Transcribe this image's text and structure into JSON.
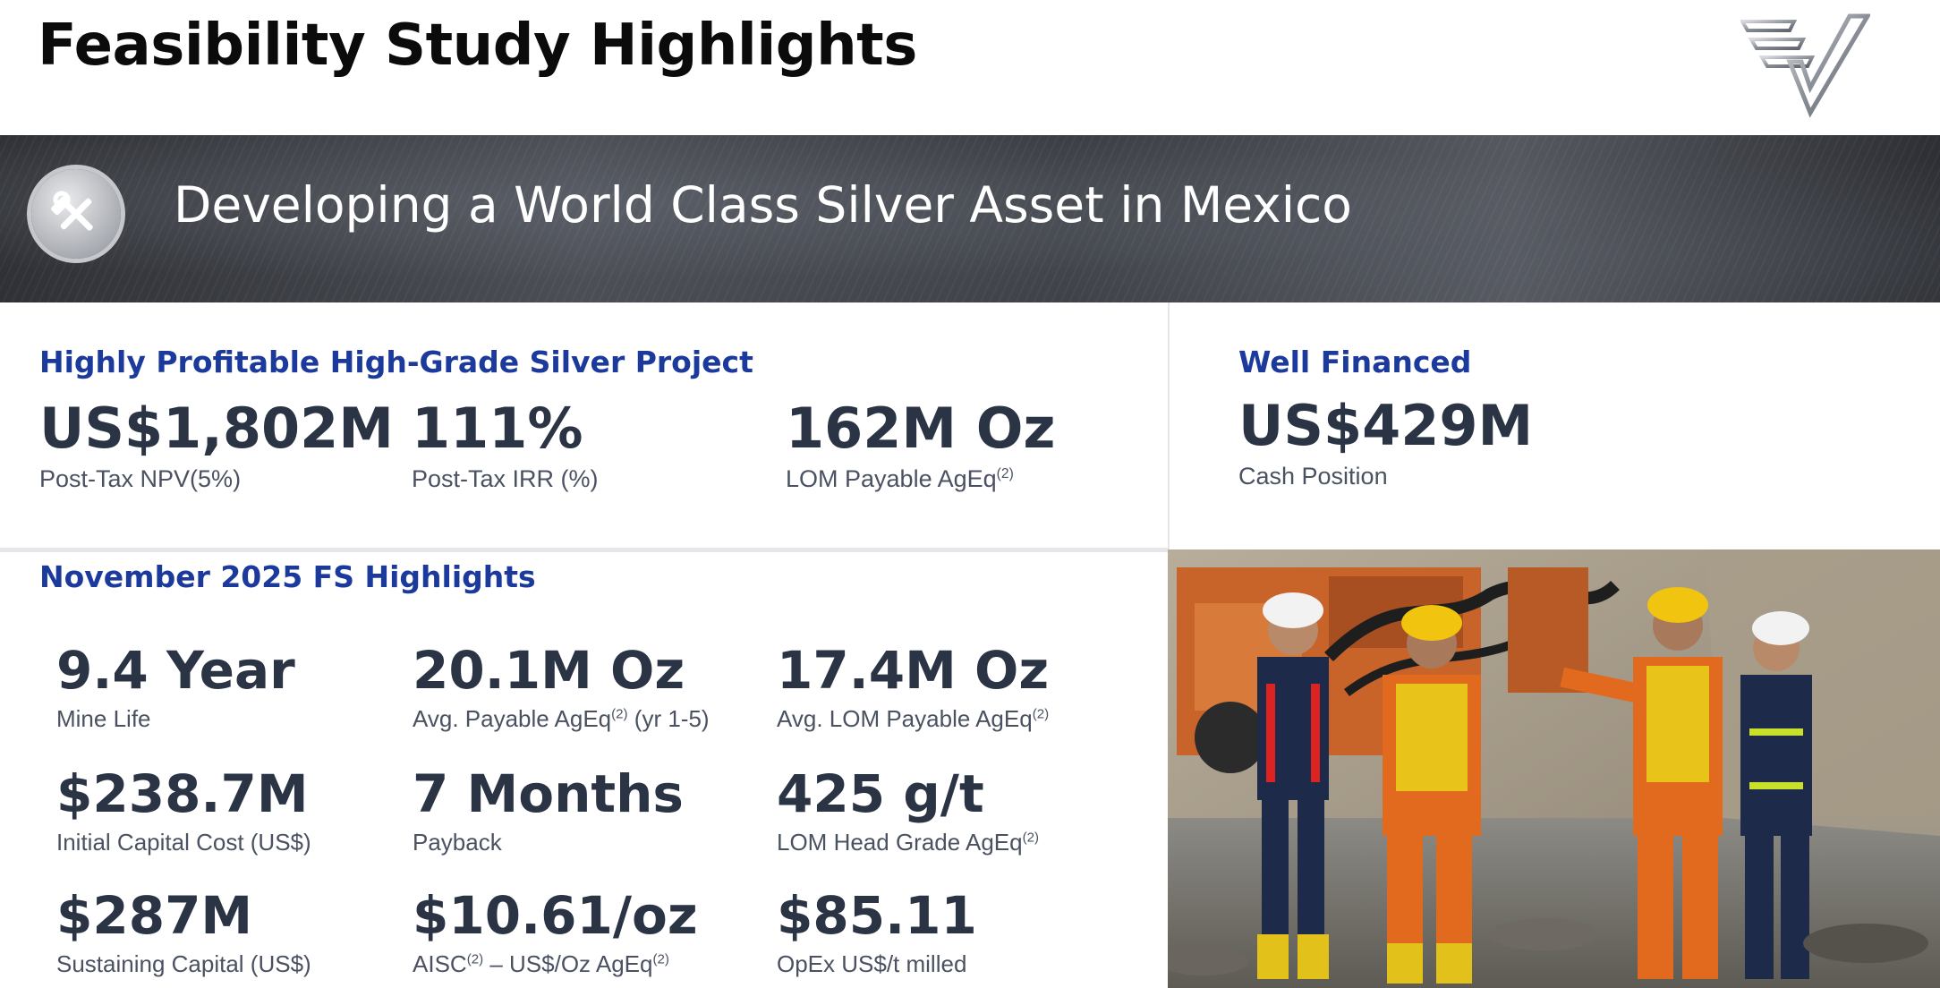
{
  "header": {
    "title": "Feasibility Study Highlights"
  },
  "banner": {
    "text": "Developing a World Class Silver Asset in Mexico",
    "icon": "hammer-wrench-icon"
  },
  "profitable": {
    "heading": "Highly Profitable High-Grade Silver Project",
    "metrics": [
      {
        "value": "US$1,802M",
        "label": "Post-Tax NPV(5%)"
      },
      {
        "value": "111%",
        "label": "Post-Tax IRR (%)"
      },
      {
        "value": "162M Oz",
        "label": "LOM Payable AgEq",
        "sup": "(2)"
      }
    ]
  },
  "financed": {
    "heading": "Well Financed",
    "value": "US$429M",
    "label": "Cash Position"
  },
  "fs": {
    "heading": "November 2025 FS Highlights",
    "metrics": [
      {
        "value": "9.4 Year",
        "label": "Mine Life"
      },
      {
        "value": "20.1M Oz",
        "label_a": "Avg. Payable AgEq",
        "sup": "(2)",
        "label_b": " (yr 1-5)"
      },
      {
        "value": "17.4M Oz",
        "label": "Avg. LOM Payable AgEq",
        "sup": "(2)"
      },
      {
        "value": "$238.7M",
        "label": "Initial Capital Cost (US$)"
      },
      {
        "value": "7 Months",
        "label": "Payback"
      },
      {
        "value": "425 g/t",
        "label": "LOM Head Grade AgEq",
        "sup": "(2)"
      },
      {
        "value": "$287M",
        "label": "Sustaining Capital (US$)"
      },
      {
        "value": "$10.61/oz",
        "label_a": "AISC",
        "sup_a": "(2)",
        "label_b": " – US$/Oz AgEq",
        "sup_b": "(2)"
      },
      {
        "value": "$85.11",
        "label": "OpEx US$/t milled"
      }
    ]
  },
  "colors": {
    "heading_blue": "#1c3a9c",
    "value_dark": "#2b3444",
    "label_gray": "#4a5262"
  }
}
